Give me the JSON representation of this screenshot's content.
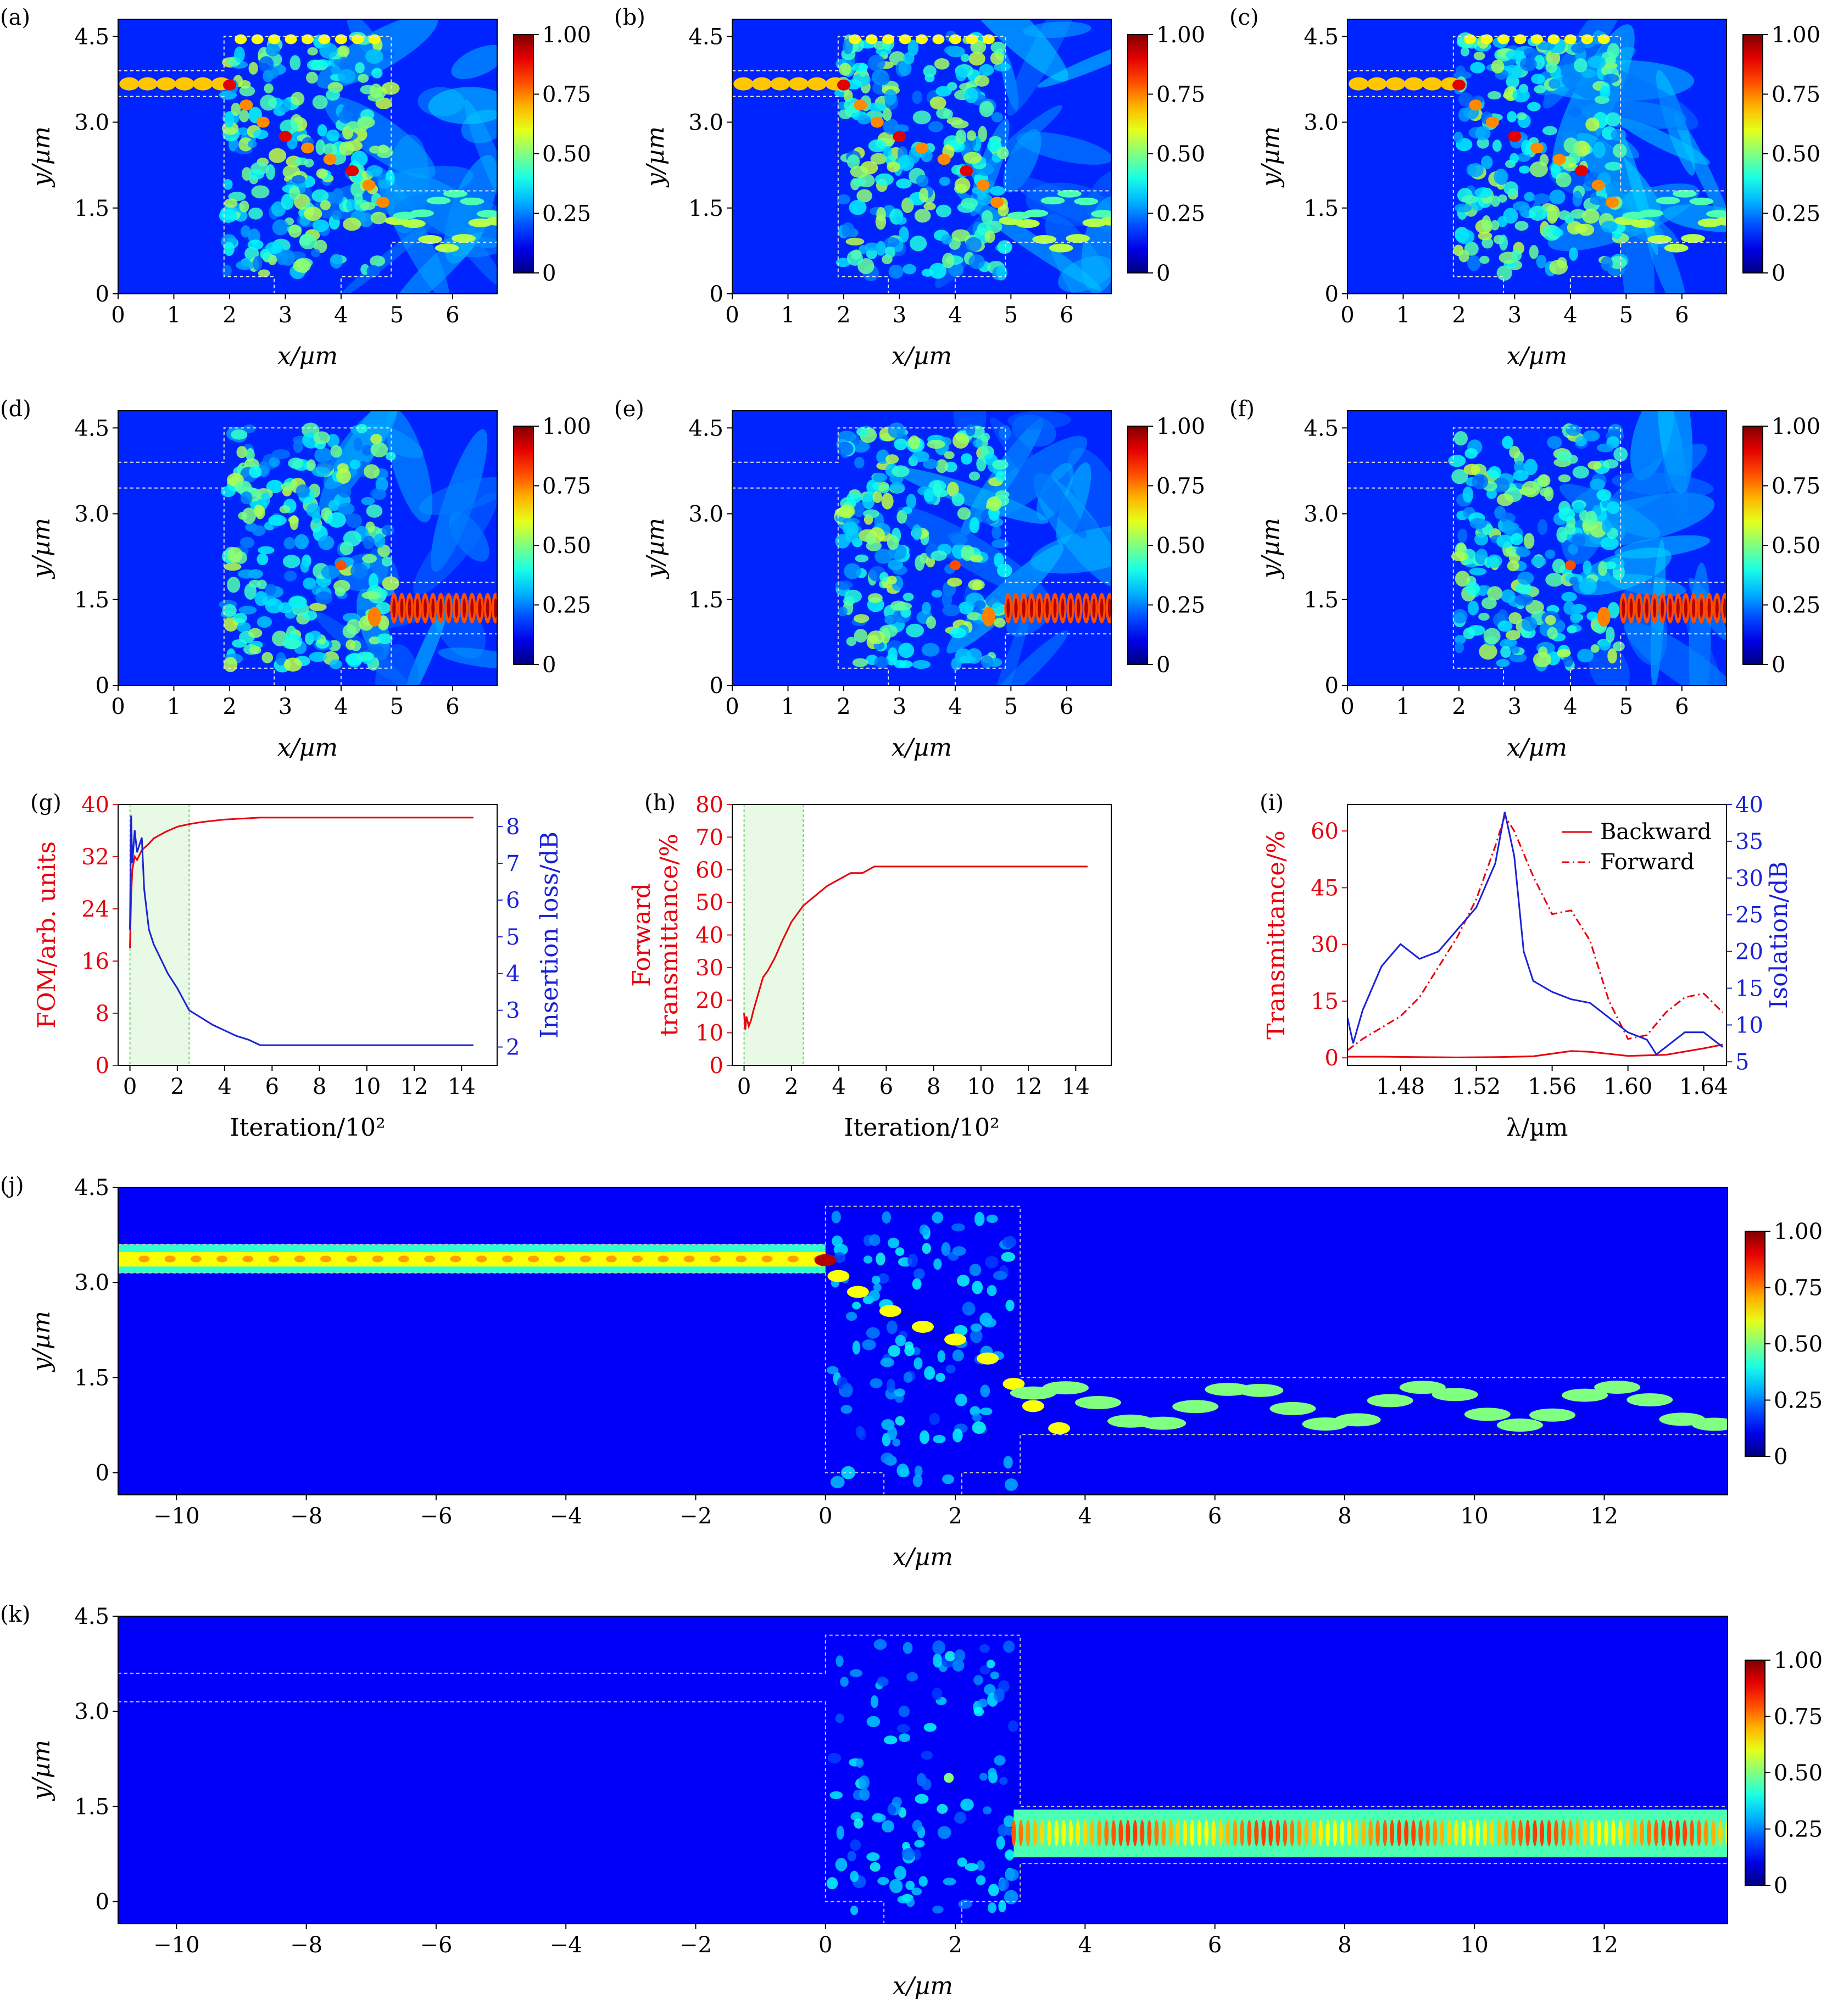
{
  "figure": {
    "colorbar_ticks": [
      "1.00",
      "0.75",
      "0.50",
      "0.25",
      "0"
    ]
  },
  "chart_data": [
    {
      "id": "a",
      "type": "heatmap",
      "label": "(a)",
      "title": "",
      "xlabel": "x/µm",
      "ylabel": "y/µm",
      "xlim": [
        0,
        6.8
      ],
      "ylim": [
        0,
        4.8
      ],
      "xticks": [
        0,
        1,
        2,
        3,
        4,
        5,
        6
      ],
      "yticks": [
        0,
        1.5,
        3.0,
        4.5
      ],
      "ytick_labels": [
        "0",
        "1.5",
        "3.0",
        "4.5"
      ],
      "colorbar": {
        "min": 0,
        "max": 1.0
      },
      "description": "field intensity, forward input, waveguide in top-left and out bottom-right"
    },
    {
      "id": "b",
      "type": "heatmap",
      "label": "(b)",
      "xlabel": "x/µm",
      "ylabel": "y/µm",
      "xlim": [
        0,
        6.8
      ],
      "ylim": [
        0,
        4.8
      ],
      "xticks": [
        0,
        1,
        2,
        3,
        4,
        5,
        6
      ],
      "yticks": [
        0,
        1.5,
        3.0,
        4.5
      ],
      "ytick_labels": [
        "0",
        "1.5",
        "3.0",
        "4.5"
      ],
      "colorbar": {
        "min": 0,
        "max": 1.0
      }
    },
    {
      "id": "c",
      "type": "heatmap",
      "label": "(c)",
      "xlabel": "x/µm",
      "ylabel": "y/µm",
      "xlim": [
        0,
        6.8
      ],
      "ylim": [
        0,
        4.8
      ],
      "xticks": [
        0,
        1,
        2,
        3,
        4,
        5,
        6
      ],
      "yticks": [
        0,
        1.5,
        3.0,
        4.5
      ],
      "ytick_labels": [
        "0",
        "1.5",
        "3.0",
        "4.5"
      ],
      "colorbar": {
        "min": 0,
        "max": 1.0
      }
    },
    {
      "id": "d",
      "type": "heatmap",
      "label": "(d)",
      "xlabel": "x/µm",
      "ylabel": "y/µm",
      "xlim": [
        0,
        6.8
      ],
      "ylim": [
        0,
        4.8
      ],
      "xticks": [
        0,
        1,
        2,
        3,
        4,
        5,
        6
      ],
      "yticks": [
        0,
        1.5,
        3.0,
        4.5
      ],
      "ytick_labels": [
        "0",
        "1.5",
        "3.0",
        "4.5"
      ],
      "colorbar": {
        "min": 0,
        "max": 1.0
      }
    },
    {
      "id": "e",
      "type": "heatmap",
      "label": "(e)",
      "xlabel": "x/µm",
      "ylabel": "y/µm",
      "xlim": [
        0,
        6.8
      ],
      "ylim": [
        0,
        4.8
      ],
      "xticks": [
        0,
        1,
        2,
        3,
        4,
        5,
        6
      ],
      "yticks": [
        0,
        1.5,
        3.0,
        4.5
      ],
      "ytick_labels": [
        "0",
        "1.5",
        "3.0",
        "4.5"
      ],
      "colorbar": {
        "min": 0,
        "max": 1.0
      }
    },
    {
      "id": "f",
      "type": "heatmap",
      "label": "(f)",
      "xlabel": "x/µm",
      "ylabel": "y/µm",
      "xlim": [
        0,
        6.8
      ],
      "ylim": [
        0,
        4.8
      ],
      "xticks": [
        0,
        1,
        2,
        3,
        4,
        5,
        6
      ],
      "yticks": [
        0,
        1.5,
        3.0,
        4.5
      ],
      "ytick_labels": [
        "0",
        "1.5",
        "3.0",
        "4.5"
      ],
      "colorbar": {
        "min": 0,
        "max": 1.0
      }
    },
    {
      "id": "g",
      "type": "line",
      "label": "(g)",
      "xlabel": "Iteration/10²",
      "ylabel_left": "FOM/arb. units",
      "ylabel_right": "Insertion loss/dB",
      "xlim": [
        -0.5,
        15.5
      ],
      "ylim_left": [
        0,
        40
      ],
      "ylim_right": [
        1.5,
        8.6
      ],
      "xticks": [
        0,
        2,
        4,
        6,
        8,
        10,
        12,
        14
      ],
      "yticks_left": [
        0,
        8,
        16,
        24,
        32,
        40
      ],
      "yticks_right": [
        2,
        3,
        4,
        5,
        6,
        7,
        8
      ],
      "shaded_span": [
        0,
        2.5
      ],
      "series": [
        {
          "name": "FOM",
          "axis": "left",
          "color": "#e8000b",
          "x": [
            0,
            0.05,
            0.1,
            0.2,
            0.3,
            0.5,
            0.8,
            1.0,
            1.5,
            2.0,
            2.5,
            3.0,
            4.0,
            5.0,
            5.5,
            6,
            8,
            10,
            12,
            14.5
          ],
          "y": [
            18,
            26,
            30,
            32,
            31.5,
            33,
            34,
            34.8,
            35.8,
            36.6,
            37.0,
            37.3,
            37.7,
            37.9,
            38,
            38,
            38,
            38,
            38,
            38
          ]
        },
        {
          "name": "Insertion loss",
          "axis": "right",
          "color": "#1a22d6",
          "x": [
            0,
            0.05,
            0.1,
            0.2,
            0.3,
            0.5,
            0.6,
            0.8,
            1.0,
            1.3,
            1.6,
            2.0,
            2.5,
            3.0,
            3.5,
            4.0,
            4.5,
            5.0,
            5.5,
            6,
            8,
            10,
            12,
            14.5
          ],
          "y": [
            5.2,
            8.3,
            7.0,
            7.9,
            7.3,
            7.7,
            6.3,
            5.2,
            4.8,
            4.4,
            4.0,
            3.6,
            3.0,
            2.8,
            2.6,
            2.45,
            2.3,
            2.2,
            2.05,
            2.05,
            2.05,
            2.05,
            2.05,
            2.05
          ]
        }
      ]
    },
    {
      "id": "h",
      "type": "line",
      "label": "(h)",
      "xlabel": "Iteration/10²",
      "ylabel_line1": "Forward",
      "ylabel_line2": "transmittance/%",
      "xlim": [
        -0.5,
        15.5
      ],
      "ylim": [
        0,
        80
      ],
      "xticks": [
        0,
        2,
        4,
        6,
        8,
        10,
        12,
        14
      ],
      "yticks": [
        0,
        10,
        20,
        30,
        40,
        50,
        60,
        70,
        80
      ],
      "shaded_span": [
        0,
        2.5
      ],
      "series": [
        {
          "name": "Forward transmittance",
          "color": "#e8000b",
          "x": [
            0,
            0.05,
            0.1,
            0.2,
            0.3,
            0.4,
            0.6,
            0.8,
            1.0,
            1.3,
            1.6,
            2.0,
            2.5,
            3.0,
            3.5,
            4.0,
            4.5,
            5.0,
            5.5,
            6,
            8,
            10,
            12,
            14.5
          ],
          "y": [
            16,
            11,
            15,
            12,
            14,
            17,
            22,
            27,
            29,
            33,
            38,
            44,
            49,
            52,
            55,
            57,
            59,
            59,
            61,
            61,
            61,
            61,
            61,
            61
          ]
        }
      ]
    },
    {
      "id": "i",
      "type": "line",
      "label": "(i)",
      "xlabel": "λ/µm",
      "ylabel_left": "Transmittance/%",
      "ylabel_right": "Isolation/dB",
      "xlim": [
        1.452,
        1.652
      ],
      "ylim_left": [
        -2,
        67
      ],
      "ylim_right": [
        4.5,
        40
      ],
      "xticks": [
        1.48,
        1.52,
        1.56,
        1.6,
        1.64
      ],
      "xtick_labels": [
        "1.48",
        "1.52",
        "1.56",
        "1.60",
        "1.64"
      ],
      "yticks_left": [
        0,
        15,
        30,
        45,
        60
      ],
      "yticks_right": [
        5,
        10,
        15,
        20,
        25,
        30,
        35,
        40
      ],
      "legend": {
        "position": "top-right",
        "entries": [
          "Backward",
          "Forward"
        ]
      },
      "series": [
        {
          "name": "Backward",
          "axis": "left",
          "color": "#e8000b",
          "dash": "solid",
          "x": [
            1.452,
            1.47,
            1.49,
            1.51,
            1.53,
            1.55,
            1.57,
            1.58,
            1.6,
            1.62,
            1.64,
            1.65
          ],
          "y": [
            0.3,
            0.3,
            0.2,
            0.1,
            0.2,
            0.4,
            1.8,
            1.6,
            0.5,
            0.8,
            2.5,
            3.5
          ]
        },
        {
          "name": "Forward",
          "axis": "left",
          "color": "#e8000b",
          "dash": "dashdot",
          "x": [
            1.452,
            1.46,
            1.47,
            1.48,
            1.49,
            1.5,
            1.51,
            1.52,
            1.53,
            1.535,
            1.54,
            1.55,
            1.56,
            1.57,
            1.58,
            1.59,
            1.6,
            1.61,
            1.62,
            1.63,
            1.64,
            1.65
          ],
          "y": [
            2,
            5,
            8,
            11,
            16,
            24,
            32,
            42,
            56,
            64,
            60,
            48,
            38,
            39,
            31,
            15,
            5,
            6,
            12,
            16,
            17,
            12
          ]
        },
        {
          "name": "Isolation",
          "axis": "right",
          "color": "#1a22d6",
          "dash": "solid",
          "x": [
            1.452,
            1.455,
            1.46,
            1.47,
            1.48,
            1.49,
            1.5,
            1.51,
            1.52,
            1.53,
            1.535,
            1.54,
            1.545,
            1.55,
            1.56,
            1.57,
            1.58,
            1.59,
            1.6,
            1.61,
            1.615,
            1.62,
            1.63,
            1.64,
            1.65
          ],
          "y": [
            11,
            7.5,
            12,
            18,
            21,
            19,
            20,
            23,
            26,
            32,
            39,
            33,
            20,
            16,
            14.5,
            13.5,
            13,
            11,
            9,
            8,
            6,
            7,
            9,
            9,
            7
          ]
        }
      ]
    },
    {
      "id": "j",
      "type": "heatmap",
      "label": "(j)",
      "xlabel": "x/µm",
      "ylabel": "y/µm",
      "xlim": [
        -10.9,
        13.9
      ],
      "ylim": [
        -0.35,
        4.5
      ],
      "xticks": [
        -10,
        -8,
        -6,
        -4,
        -2,
        0,
        2,
        4,
        6,
        8,
        10,
        12
      ],
      "xtick_labels": [
        "−10",
        "−8",
        "−6",
        "−4",
        "−2",
        "0",
        "2",
        "4",
        "6",
        "8",
        "10",
        "12"
      ],
      "yticks": [
        0,
        1.5,
        3.0,
        4.5
      ],
      "ytick_labels": [
        "0",
        "1.5",
        "3.0",
        "4.5"
      ],
      "colorbar": {
        "min": 0,
        "max": 1.0
      }
    },
    {
      "id": "k",
      "type": "heatmap",
      "label": "(k)",
      "xlabel": "x/µm",
      "ylabel": "y/µm",
      "xlim": [
        -10.9,
        13.9
      ],
      "ylim": [
        -0.35,
        4.5
      ],
      "xticks": [
        -10,
        -8,
        -6,
        -4,
        -2,
        0,
        2,
        4,
        6,
        8,
        10,
        12
      ],
      "xtick_labels": [
        "−10",
        "−8",
        "−6",
        "−4",
        "−2",
        "0",
        "2",
        "4",
        "6",
        "8",
        "10",
        "12"
      ],
      "yticks": [
        0,
        1.5,
        3.0,
        4.5
      ],
      "ytick_labels": [
        "0",
        "1.5",
        "3.0",
        "4.5"
      ],
      "colorbar": {
        "min": 0,
        "max": 1.0
      }
    }
  ]
}
